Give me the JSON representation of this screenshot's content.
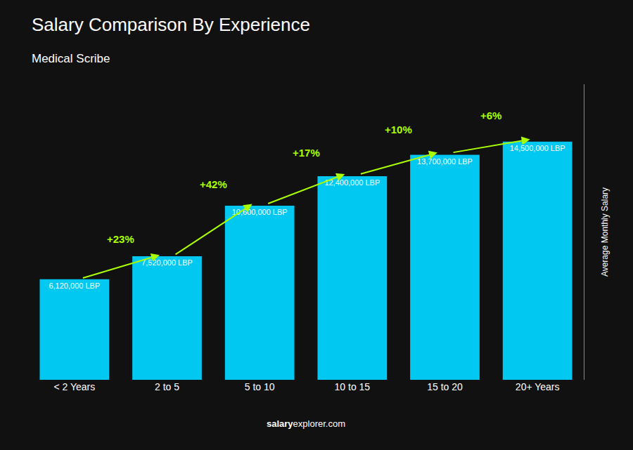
{
  "chart_data": {
    "type": "bar",
    "title": "Salary Comparison By Experience",
    "subtitle": "Medical Scribe",
    "ylabel": "Average Monthly Salary",
    "categories": [
      "< 2 Years",
      "2 to 5",
      "5 to 10",
      "10 to 15",
      "15 to 20",
      "20+ Years"
    ],
    "values": [
      6120000,
      7520000,
      10600000,
      12400000,
      13700000,
      14500000
    ],
    "value_labels": [
      "6,120,000 LBP",
      "7,520,000 LBP",
      "10,600,000 LBP",
      "12,400,000 LBP",
      "13,700,000 LBP",
      "14,500,000 LBP"
    ],
    "data_labels": true,
    "color": "#00c8f0",
    "ylim": [
      0,
      18000000
    ],
    "tick_labels": "x",
    "grid": false,
    "annotations": [
      {
        "text": "+23%",
        "color": "#aaff00"
      },
      {
        "text": "+42%",
        "color": "#aaff00"
      },
      {
        "text": "+17%",
        "color": "#aaff00"
      },
      {
        "text": "+10%",
        "color": "#aaff00"
      },
      {
        "text": "+6%",
        "color": "#aaff00"
      },
      {
        "text": "salary",
        "bold": true
      },
      {
        "text": "explorer.com"
      }
    ]
  }
}
